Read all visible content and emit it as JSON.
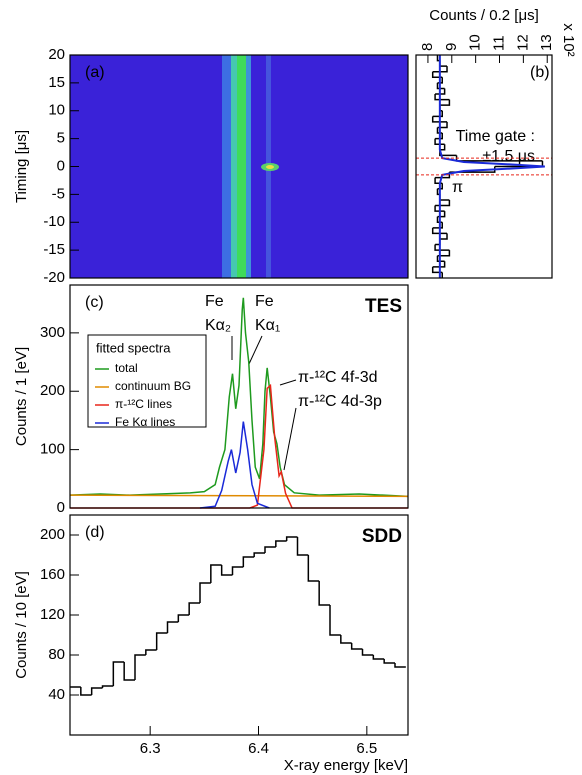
{
  "chart_data": [
    {
      "type": "heatmap",
      "panel_label": "(a)",
      "ylabel": "Timing [μs]",
      "xlim": [
        6.226,
        6.538
      ],
      "ylim": [
        -20,
        20
      ],
      "yticks": [
        -20,
        -15,
        -10,
        -5,
        0,
        5,
        10,
        15,
        20
      ]
    },
    {
      "type": "histogram",
      "orientation": "horizontal",
      "panel_label": "(b)",
      "xlabel": "Counts / 0.2 [μs]",
      "multiplier": "x 10²",
      "xlim": [
        7.5,
        13.2
      ],
      "xticks": [
        8,
        9,
        10,
        11,
        12,
        13
      ],
      "ylim": [
        -20,
        20
      ],
      "bins": [
        -20,
        -19,
        -18,
        -17,
        -16,
        -15,
        -14,
        -13,
        -12,
        -11,
        -10,
        -9,
        -8,
        -7,
        -6,
        -5,
        -4,
        -3,
        -2,
        -1,
        0,
        1,
        2,
        3,
        4,
        5,
        6,
        7,
        8,
        9,
        10,
        11,
        12,
        13,
        14,
        15,
        16,
        17,
        18,
        19,
        20
      ],
      "counts": [
        8.6,
        8.2,
        8.7,
        8.4,
        8.9,
        8.3,
        8.5,
        8.8,
        8.2,
        8.6,
        8.4,
        8.7,
        8.3,
        8.9,
        8.5,
        8.4,
        8.6,
        8.3,
        8.9,
        10.8,
        12.8,
        9.2,
        8.5,
        8.7,
        8.3,
        8.6,
        8.4,
        8.8,
        8.2,
        8.6,
        8.5,
        8.9,
        8.3,
        8.7,
        8.4,
        8.6,
        8.2,
        8.8,
        8.5,
        8.4
      ],
      "color": "#000000",
      "fit": {
        "color": "#1a2ad8",
        "t": [
          -20,
          -3,
          -1.5,
          -0.8,
          -0.3,
          0,
          0.3,
          0.8,
          1.5,
          3,
          20
        ],
        "values": [
          8.5,
          8.5,
          8.6,
          9.5,
          11.8,
          12.9,
          11.8,
          9.5,
          8.6,
          8.5,
          8.5
        ]
      },
      "gate": [
        -1.5,
        1.5
      ],
      "gate_color": "#e8261a",
      "annotations": [
        "Time gate :",
        "±1.5 μs",
        "π"
      ]
    },
    {
      "type": "line",
      "panel_label": "(c)",
      "title": "TES",
      "ylabel": "Counts / 1 [eV]",
      "xlim": [
        6.226,
        6.538
      ],
      "ylim": [
        0,
        382
      ],
      "yticks": [
        0,
        100,
        200,
        300
      ],
      "legend_title": "fitted spectra",
      "legend": "upper left",
      "series": [
        {
          "name": "total",
          "color": "#1e9a1e",
          "x": [
            6.226,
            6.254,
            6.281,
            6.309,
            6.337,
            6.35,
            6.36,
            6.364,
            6.369,
            6.373,
            6.376,
            6.379,
            6.382,
            6.385,
            6.386,
            6.388,
            6.391,
            6.394,
            6.397,
            6.401,
            6.404,
            6.406,
            6.408,
            6.411,
            6.414,
            6.417,
            6.42,
            6.424,
            6.433,
            6.456,
            6.493,
            6.538
          ],
          "values": [
            22,
            24,
            22,
            24,
            26,
            28,
            40,
            70,
            100,
            190,
            230,
            170,
            210,
            340,
            360,
            300,
            250,
            150,
            70,
            50,
            110,
            200,
            240,
            190,
            130,
            110,
            70,
            40,
            26,
            22,
            24,
            20
          ]
        },
        {
          "name": "continuum BG",
          "color": "#e08a00",
          "x": [
            6.226,
            6.538
          ],
          "values": [
            22,
            20
          ]
        },
        {
          "name": "π-¹²C lines",
          "color": "#e8261a",
          "x": [
            6.226,
            6.392,
            6.399,
            6.405,
            6.408,
            6.411,
            6.415,
            6.419,
            6.421,
            6.425,
            6.431,
            6.538
          ],
          "values": [
            0,
            0,
            5,
            100,
            205,
            210,
            120,
            55,
            62,
            25,
            0,
            0
          ]
        },
        {
          "name": "Fe Kα lines",
          "color": "#1a2ad8",
          "x": [
            6.346,
            6.36,
            6.366,
            6.372,
            6.375,
            6.379,
            6.383,
            6.386,
            6.39,
            6.394,
            6.399,
            6.41
          ],
          "values": [
            0,
            3,
            30,
            80,
            100,
            60,
            95,
            148,
            100,
            40,
            8,
            0
          ]
        }
      ],
      "annotations": [
        "Fe",
        "Kα₂",
        "Fe",
        "Kα₁",
        "π-¹²C 4f-3d",
        "π-¹²C 4d-3p"
      ]
    },
    {
      "type": "histogram",
      "panel_label": "(d)",
      "title": "SDD",
      "ylabel": "Counts / 10 [eV]",
      "xlabel": "X-ray energy [keV]",
      "xlim": [
        6.226,
        6.538
      ],
      "ylim": [
        0,
        220
      ],
      "yticks": [
        40,
        80,
        120,
        160,
        200
      ],
      "xticks": [
        6.3,
        6.4,
        6.5
      ],
      "bins": [
        6.226,
        6.236,
        6.246,
        6.256,
        6.266,
        6.276,
        6.286,
        6.296,
        6.306,
        6.316,
        6.326,
        6.336,
        6.346,
        6.356,
        6.366,
        6.376,
        6.386,
        6.396,
        6.406,
        6.416,
        6.426,
        6.436,
        6.446,
        6.456,
        6.466,
        6.476,
        6.486,
        6.496,
        6.506,
        6.516,
        6.526,
        6.536
      ],
      "counts": [
        48,
        40,
        47,
        49,
        73,
        55,
        80,
        85,
        102,
        113,
        120,
        132,
        152,
        170,
        160,
        168,
        178,
        182,
        188,
        194,
        198,
        180,
        154,
        130,
        100,
        92,
        86,
        80,
        76,
        72,
        68
      ],
      "color": "#000000"
    }
  ]
}
